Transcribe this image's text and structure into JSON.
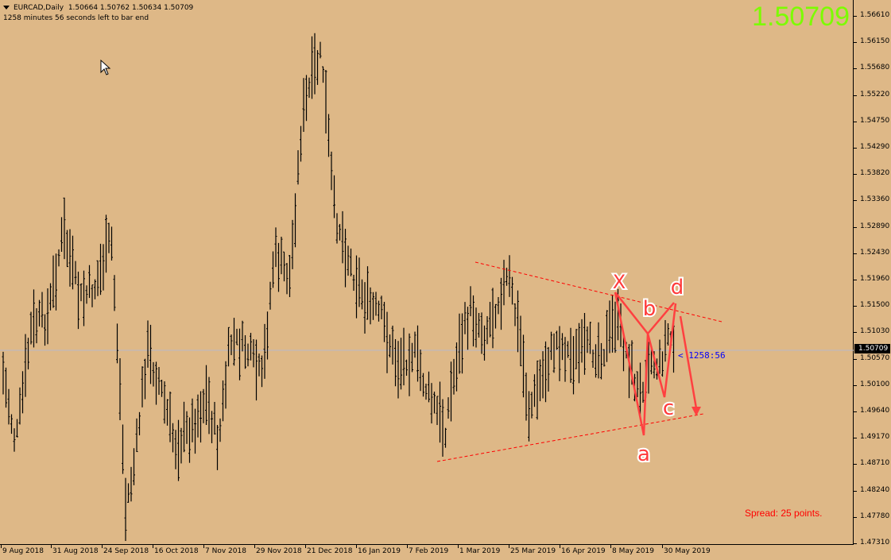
{
  "header": {
    "symbol": "EURCAD,Daily",
    "ohlc": "1.50664 1.50762 1.50634 1.50709",
    "countdown_text": "1258 minutes 56 seconds left to bar end"
  },
  "big_price": "1.50709",
  "current_price_label": "1.50709",
  "bar_timer": "< 1258:56",
  "spread_text": "Spread: 25 points.",
  "colors": {
    "background": "#deb887",
    "bars": "#000000",
    "big_price": "#7cfc00",
    "pattern": "#ff3b3b",
    "trendline": "#ff0000",
    "timer": "#0000ff",
    "spread": "#ff0000"
  },
  "y_axis": {
    "ticks": [
      "1.56610",
      "1.56150",
      "1.55680",
      "1.55220",
      "1.54750",
      "1.54290",
      "1.53820",
      "1.53360",
      "1.52890",
      "1.52430",
      "1.51960",
      "1.51500",
      "1.51030",
      "1.50570",
      "1.50100",
      "1.49640",
      "1.49170",
      "1.48710",
      "1.48240",
      "1.47780",
      "1.47310"
    ]
  },
  "x_axis": {
    "ticks": [
      "9 Aug 2018",
      "31 Aug 2018",
      "24 Sep 2018",
      "16 Oct 2018",
      "7 Nov 2018",
      "29 Nov 2018",
      "21 Dec 2018",
      "16 Jan 2019",
      "7 Feb 2019",
      "1 Mar 2019",
      "25 Mar 2019",
      "16 Apr 2019",
      "8 May 2019",
      "30 May 2019"
    ]
  },
  "pattern_labels": {
    "x": "X",
    "a": "a",
    "b": "b",
    "c": "c",
    "d": "d"
  },
  "chart_data": {
    "type": "ohlc",
    "title": "EURCAD,Daily",
    "ylim": [
      1.4731,
      1.5661
    ],
    "x_ticks": [
      "9 Aug 2018",
      "31 Aug 2018",
      "24 Sep 2018",
      "16 Oct 2018",
      "7 Nov 2018",
      "29 Nov 2018",
      "21 Dec 2018",
      "16 Jan 2019",
      "7 Feb 2019",
      "1 Mar 2019",
      "25 Mar 2019",
      "16 Apr 2019",
      "8 May 2019",
      "30 May 2019"
    ],
    "last": {
      "open": 1.50664,
      "high": 1.50762,
      "low": 1.50634,
      "close": 1.50709
    },
    "key_levels": {
      "high_dec_2018": 1.564,
      "low_sep_2018": 1.4755,
      "low_feb_2019": 1.4875
    },
    "annotations": [
      "XABCD harmonic pattern (X, a, b, c, d)",
      "descending trendline from ~1.522 (Mar 2019)",
      "ascending trendline from ~1.487 (Feb 2019)",
      "projected down arrow from d toward ~1.496"
    ]
  }
}
